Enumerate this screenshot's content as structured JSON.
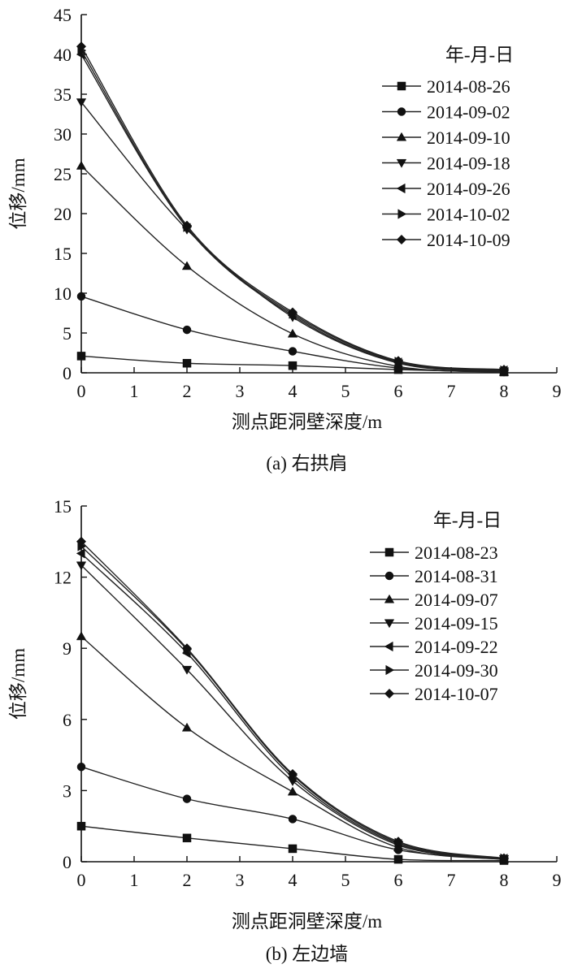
{
  "chart_data": [
    {
      "type": "line",
      "caption": "(a) 右拱肩",
      "xlabel": "测点距洞壁深度/m",
      "ylabel": "位移/mm",
      "xlim": [
        0,
        9
      ],
      "ylim": [
        0,
        45
      ],
      "x_ticks": [
        0,
        1,
        2,
        3,
        4,
        5,
        6,
        7,
        8,
        9
      ],
      "y_ticks": [
        0,
        5,
        10,
        15,
        20,
        25,
        30,
        35,
        40,
        45
      ],
      "legend_title": "年-月-日",
      "legend_position": "top-right",
      "x": [
        0,
        2,
        4,
        6,
        8
      ],
      "series": [
        {
          "name": "2014-08-26",
          "marker": "square",
          "values": [
            2.1,
            1.2,
            0.9,
            0.4,
            0.1
          ]
        },
        {
          "name": "2014-09-02",
          "marker": "circle",
          "values": [
            9.6,
            5.4,
            2.7,
            0.6,
            0.1
          ]
        },
        {
          "name": "2014-09-10",
          "marker": "triangle-up",
          "values": [
            26.0,
            13.4,
            4.9,
            0.8,
            0.1
          ]
        },
        {
          "name": "2014-09-18",
          "marker": "triangle-down",
          "values": [
            34.0,
            18.0,
            7.0,
            1.2,
            0.2
          ]
        },
        {
          "name": "2014-09-26",
          "marker": "triangle-left",
          "values": [
            40.0,
            18.2,
            7.2,
            1.3,
            0.3
          ]
        },
        {
          "name": "2014-10-02",
          "marker": "triangle-right",
          "values": [
            40.5,
            18.3,
            7.4,
            1.4,
            0.3
          ]
        },
        {
          "name": "2014-10-09",
          "marker": "diamond",
          "values": [
            41.0,
            18.5,
            7.6,
            1.5,
            0.4
          ]
        }
      ]
    },
    {
      "type": "line",
      "caption": "(b) 左边墙",
      "xlabel": "测点距洞壁深度/m",
      "ylabel": "位移/mm",
      "xlim": [
        0,
        9
      ],
      "ylim": [
        0,
        15
      ],
      "x_ticks": [
        0,
        1,
        2,
        3,
        4,
        5,
        6,
        7,
        8,
        9
      ],
      "y_ticks": [
        0,
        3,
        6,
        9,
        12,
        15
      ],
      "legend_title": "年-月-日",
      "legend_position": "top-right",
      "x": [
        0,
        2,
        4,
        6,
        8
      ],
      "series": [
        {
          "name": "2014-08-23",
          "marker": "square",
          "values": [
            1.5,
            1.0,
            0.55,
            0.1,
            0.05
          ]
        },
        {
          "name": "2014-08-31",
          "marker": "circle",
          "values": [
            4.0,
            2.65,
            1.8,
            0.5,
            0.1
          ]
        },
        {
          "name": "2014-09-07",
          "marker": "triangle-up",
          "values": [
            9.5,
            5.65,
            2.95,
            0.6,
            0.1
          ]
        },
        {
          "name": "2014-09-15",
          "marker": "triangle-down",
          "values": [
            12.5,
            8.1,
            3.4,
            0.7,
            0.12
          ]
        },
        {
          "name": "2014-09-22",
          "marker": "triangle-left",
          "values": [
            13.0,
            8.8,
            3.55,
            0.75,
            0.13
          ]
        },
        {
          "name": "2014-09-30",
          "marker": "triangle-right",
          "values": [
            13.3,
            8.95,
            3.65,
            0.8,
            0.14
          ]
        },
        {
          "name": "2014-10-07",
          "marker": "diamond",
          "values": [
            13.5,
            9.0,
            3.7,
            0.85,
            0.15
          ]
        }
      ]
    }
  ]
}
